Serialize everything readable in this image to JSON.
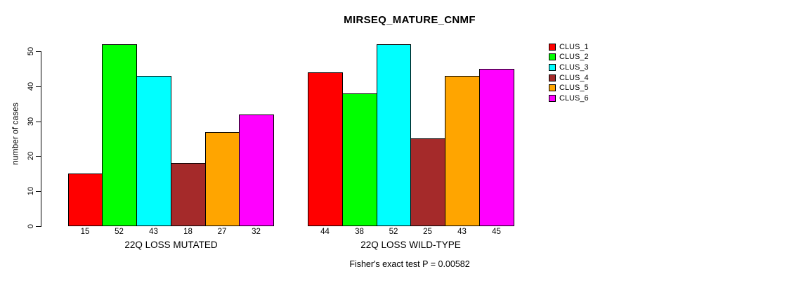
{
  "chart_data": {
    "type": "bar",
    "title": "MIRSEQ_MATURE_CNMF",
    "ylabel": "number of cases",
    "ylim": [
      0,
      50
    ],
    "yticks": [
      0,
      10,
      20,
      30,
      40,
      50
    ],
    "grid": false,
    "legend_position": "right",
    "legend": [
      {
        "label": "CLUS_1",
        "color": "#FF0000"
      },
      {
        "label": "CLUS_2",
        "color": "#00FF00"
      },
      {
        "label": "CLUS_3",
        "color": "#00FFFF"
      },
      {
        "label": "CLUS_4",
        "color": "#A52A2A"
      },
      {
        "label": "CLUS_5",
        "color": "#FFA500"
      },
      {
        "label": "CLUS_6",
        "color": "#FF00FF"
      }
    ],
    "groups": [
      {
        "label": "22Q LOSS MUTATED",
        "values": [
          15,
          52,
          43,
          18,
          27,
          32
        ]
      },
      {
        "label": "22Q LOSS WILD-TYPE",
        "values": [
          44,
          38,
          52,
          25,
          43,
          45
        ]
      }
    ],
    "footnote": "Fisher's exact test P = 0.00582"
  }
}
